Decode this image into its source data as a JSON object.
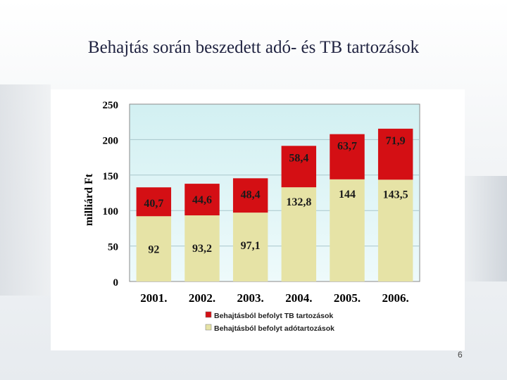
{
  "slide": {
    "title": "Behajtás során beszedett adó- és TB tartozások",
    "page_number": "6"
  },
  "chart_data": {
    "type": "bar",
    "stacked": true,
    "categories": [
      "2001.",
      "2002.",
      "2003.",
      "2004.",
      "2005.",
      "2006."
    ],
    "series": [
      {
        "name": "Behajtásból befolyt adótartozások",
        "color": "#e6e3a6",
        "values": [
          92,
          93.2,
          97.1,
          132.8,
          144,
          143.5
        ],
        "labels": [
          "92",
          "93,2",
          "97,1",
          "132,8",
          "144",
          "143,5"
        ]
      },
      {
        "name": "Behajtásból befolyt TB tartozások",
        "color": "#d40f14",
        "values": [
          40.7,
          44.6,
          48.4,
          58.4,
          63.7,
          71.9
        ],
        "labels": [
          "40,7",
          "44,6",
          "48,4",
          "58,4",
          "63,7",
          "71,9"
        ]
      }
    ],
    "ylabel": "milliárd Ft",
    "ylim": [
      0,
      250
    ],
    "yticks": [
      0,
      50,
      100,
      150,
      200,
      250
    ],
    "grid": true,
    "legend_position": "bottom"
  }
}
